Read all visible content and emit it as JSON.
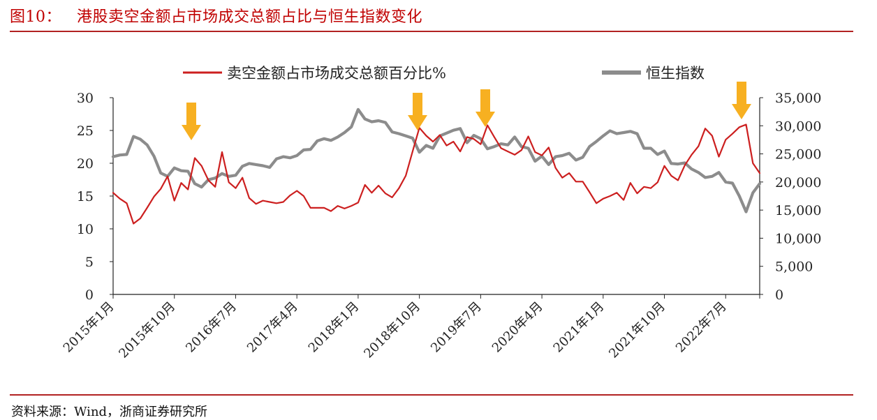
{
  "header": {
    "figure_number": "图10：",
    "title": "港股卖空金额占市场成交总额占比与恒生指数变化"
  },
  "source": "资料来源：Wind，浙商证券研究所",
  "colors": {
    "short_selling_line": "#cc1f1f",
    "hsi_line": "#8c8c8c",
    "arrow": "#f7b021",
    "accent": "#c00000"
  },
  "chart_data": {
    "type": "line",
    "title": "港股卖空金额占市场成交总额占比与恒生指数变化",
    "legend_position": "top",
    "grid": false,
    "x_labels": [
      "2015年1月",
      "2015年10月",
      "2016年7月",
      "2017年4月",
      "2018年1月",
      "2018年10月",
      "2019年7月",
      "2020年4月",
      "2021年1月",
      "2021年10月",
      "2022年7月"
    ],
    "y_left": {
      "ylim": [
        0,
        30
      ],
      "ticks": [
        "30",
        "25",
        "20",
        "15",
        "10",
        "5",
        "0"
      ]
    },
    "y_right": {
      "ylim": [
        0,
        35000
      ],
      "ticks": [
        "35,000",
        "30,000",
        "25,000",
        "20,000",
        "15,000",
        "10,000",
        "5,000",
        "0"
      ]
    },
    "series": [
      {
        "name": "卖空金额占市场成交总额百分比%",
        "axis": "left",
        "values": [
          15.5,
          14.6,
          13.9,
          10.8,
          11.6,
          13.2,
          14.9,
          16.1,
          18.0,
          14.3,
          17.0,
          16.0,
          20.8,
          19.6,
          17.4,
          16.4,
          21.7,
          17.1,
          16.2,
          17.8,
          14.7,
          13.8,
          14.3,
          14.1,
          13.9,
          14.1,
          15.1,
          15.8,
          15.0,
          13.2,
          13.2,
          13.2,
          12.7,
          13.5,
          13.1,
          13.5,
          14.0,
          16.7,
          15.5,
          16.6,
          15.4,
          14.8,
          16.2,
          18.1,
          21.8,
          25.4,
          24.2,
          23.3,
          24.3,
          22.7,
          23.3,
          21.8,
          24.0,
          23.7,
          22.9,
          25.8,
          24.0,
          22.3,
          21.8,
          21.3,
          22.0,
          24.1,
          21.7,
          21.2,
          22.4,
          19.3,
          17.8,
          18.5,
          17.2,
          17.2,
          15.6,
          13.9,
          14.6,
          15.0,
          15.5,
          14.4,
          17.0,
          15.4,
          16.4,
          16.2,
          17.1,
          19.6,
          18.1,
          17.4,
          19.7,
          21.3,
          22.6,
          25.3,
          24.2,
          21.0,
          23.6,
          24.5,
          25.5,
          25.9,
          20.0,
          18.5
        ]
      },
      {
        "name": "恒生指数",
        "axis": "right",
        "values": [
          24500,
          24800,
          24900,
          28100,
          27600,
          26600,
          24600,
          21600,
          21000,
          22500,
          22000,
          21900,
          19700,
          19100,
          20400,
          20700,
          21500,
          21000,
          21200,
          22800,
          23300,
          23100,
          22900,
          22600,
          24100,
          24500,
          24300,
          24700,
          25700,
          25800,
          27300,
          27700,
          27400,
          28000,
          28800,
          29800,
          32900,
          31200,
          30700,
          30900,
          30600,
          28900,
          28600,
          28200,
          27800,
          25300,
          26500,
          26000,
          28200,
          28700,
          29200,
          29500,
          27000,
          28300,
          27700,
          25900,
          26300,
          26800,
          26600,
          28000,
          26300,
          26000,
          23700,
          24600,
          23100,
          24500,
          24700,
          25100,
          23900,
          24400,
          26300,
          27200,
          28200,
          29100,
          28600,
          28800,
          29000,
          28600,
          26000,
          26000,
          24900,
          25500,
          23300,
          23200,
          23400,
          22300,
          21700,
          20800,
          21000,
          21700,
          20000,
          19800,
          17500,
          14700,
          18100,
          19700
        ]
      }
    ],
    "annotations": [
      "arrow",
      "arrow",
      "arrow",
      "arrow"
    ]
  }
}
